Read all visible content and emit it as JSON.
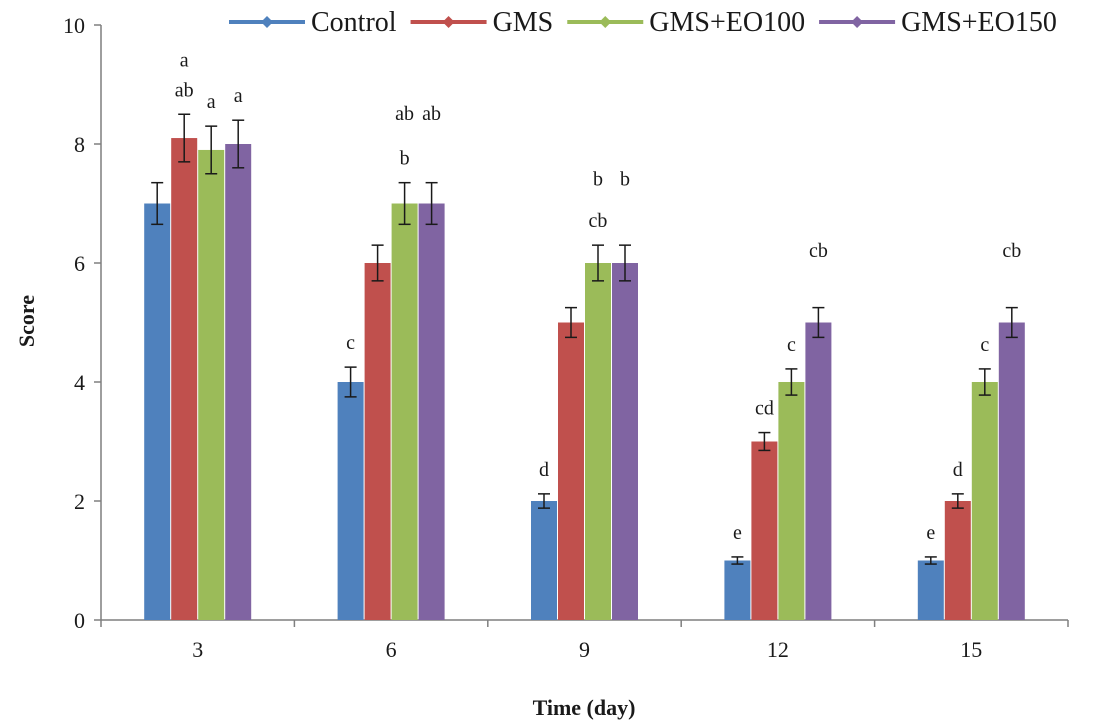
{
  "chart_data": {
    "type": "bar",
    "title": "",
    "xlabel": "Time (day)",
    "ylabel": "Score",
    "ylim": [
      0,
      10
    ],
    "yticks": [
      0,
      2,
      4,
      6,
      8,
      10
    ],
    "categories": [
      "3",
      "6",
      "9",
      "12",
      "15"
    ],
    "legend_placement": "top",
    "grid": false,
    "series": [
      {
        "name": "Control",
        "color": "#4f81bd",
        "values": [
          7.0,
          4.0,
          2.0,
          1.0,
          1.0
        ],
        "errors": [
          0.35,
          0.25,
          0.12,
          0.06,
          0.06
        ],
        "labels": [
          "",
          "c",
          "d",
          "e",
          "e"
        ]
      },
      {
        "name": "GMS",
        "color": "#c0504d",
        "values": [
          8.1,
          6.0,
          5.0,
          3.0,
          2.0
        ],
        "errors": [
          0.4,
          0.3,
          0.25,
          0.15,
          0.12
        ],
        "labels": [
          "ab",
          "",
          "",
          "cd",
          "d"
        ]
      },
      {
        "name": "GMS+EO100",
        "color": "#9bbb59",
        "values": [
          7.9,
          7.0,
          6.0,
          4.0,
          4.0
        ],
        "errors": [
          0.4,
          0.35,
          0.3,
          0.22,
          0.22
        ],
        "labels": [
          "a",
          "b",
          "cb",
          "c",
          "c"
        ]
      },
      {
        "name": "GMS+EO150",
        "color": "#8064a2",
        "values": [
          8.0,
          7.0,
          6.0,
          5.0,
          5.0
        ],
        "errors": [
          0.4,
          0.35,
          0.3,
          0.25,
          0.25
        ],
        "labels": [
          "a",
          "",
          "",
          "",
          ""
        ]
      }
    ],
    "annotations": [
      {
        "text": "a",
        "x": "3",
        "y": 9.3
      },
      {
        "text": "ab",
        "x": "6",
        "y": 8.5
      },
      {
        "text": "ab",
        "x": "6",
        "y": 8.5
      },
      {
        "text": "b",
        "x": "9",
        "y": 7.4
      },
      {
        "text": "b",
        "x": "9",
        "y": 7.4
      },
      {
        "text": "cb",
        "x": "12",
        "y": 6.1
      },
      {
        "text": "cb",
        "x": "15",
        "y": 6.1
      }
    ]
  }
}
